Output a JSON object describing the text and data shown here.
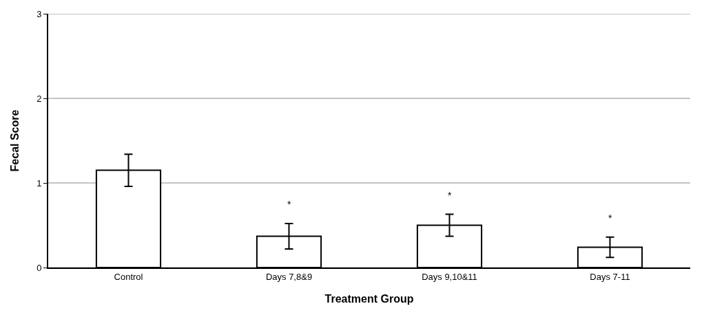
{
  "chart_data": {
    "type": "bar",
    "xlabel": "Treatment Group",
    "ylabel": "Fecal Score",
    "categories": [
      "Control",
      "Days 7,8&9",
      "Days 9,10&11",
      "Days 7-11"
    ],
    "values": [
      1.15,
      0.37,
      0.5,
      0.24
    ],
    "errors": [
      0.19,
      0.15,
      0.13,
      0.12
    ],
    "color": "#ffffff",
    "value_labels": [
      null,
      "*",
      "*",
      "*"
    ],
    "ylim": [
      0,
      3
    ],
    "yticks": [
      0,
      1,
      2,
      3
    ],
    "grid": "y"
  }
}
